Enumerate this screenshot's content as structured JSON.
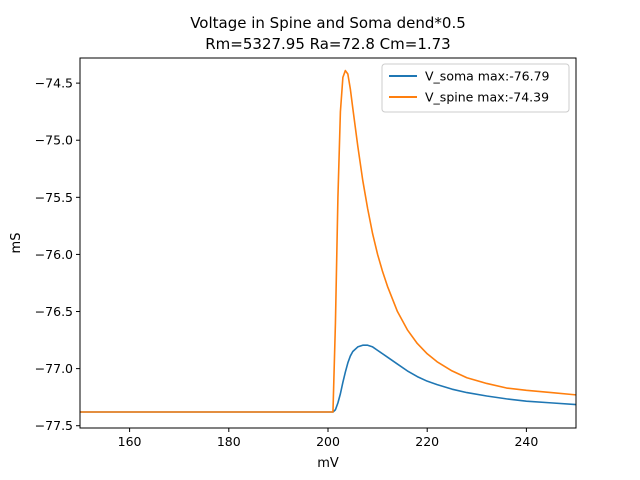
{
  "chart_data": {
    "type": "line",
    "title": "Voltage in Spine and Soma dend*0.5",
    "subtitle": "Rm=5327.95 Ra=72.8 Cm=1.73",
    "xlabel": "mV",
    "ylabel": "mS",
    "xlim": [
      150,
      250
    ],
    "ylim": [
      -77.52,
      -74.28
    ],
    "xticks": [
      160,
      180,
      200,
      220,
      240
    ],
    "yticks": [
      -77.5,
      -77.0,
      -76.5,
      -76.0,
      -75.5,
      -75.0,
      -74.5
    ],
    "ytick_labels": [
      "−77.5",
      "−77.0",
      "−76.5",
      "−76.0",
      "−75.5",
      "−75.0",
      "−74.5"
    ],
    "grid": false,
    "legend_position": "top-right",
    "series": [
      {
        "name": "V_soma max:-76.79",
        "color": "#1f77b4",
        "x": [
          150,
          200,
          201,
          201.5,
          202,
          202.5,
          203,
          203.5,
          204,
          204.5,
          205,
          206,
          207,
          208,
          209,
          210,
          212,
          214,
          216,
          218,
          220,
          222,
          225,
          228,
          232,
          236,
          240,
          245,
          250
        ],
        "y": [
          -77.38,
          -77.38,
          -77.38,
          -77.36,
          -77.3,
          -77.22,
          -77.12,
          -77.03,
          -76.95,
          -76.89,
          -76.85,
          -76.81,
          -76.795,
          -76.795,
          -76.81,
          -76.84,
          -76.9,
          -76.96,
          -77.02,
          -77.07,
          -77.11,
          -77.14,
          -77.18,
          -77.21,
          -77.24,
          -77.265,
          -77.285,
          -77.3,
          -77.315
        ]
      },
      {
        "name": "V_spine max:-74.39",
        "color": "#ff7f0e",
        "x": [
          150,
          200,
          200.5,
          201,
          201.5,
          202,
          202.5,
          203,
          203.5,
          204,
          204.5,
          205,
          206,
          207,
          208,
          209,
          210,
          211,
          212,
          214,
          216,
          218,
          220,
          222,
          225,
          228,
          232,
          236,
          240,
          245,
          250
        ],
        "y": [
          -77.38,
          -77.38,
          -77.38,
          -77.38,
          -76.6,
          -75.5,
          -74.75,
          -74.45,
          -74.39,
          -74.42,
          -74.55,
          -74.72,
          -75.05,
          -75.35,
          -75.6,
          -75.82,
          -76.0,
          -76.15,
          -76.28,
          -76.5,
          -76.66,
          -76.78,
          -76.87,
          -76.94,
          -77.02,
          -77.08,
          -77.13,
          -77.17,
          -77.19,
          -77.21,
          -77.23
        ]
      }
    ]
  }
}
